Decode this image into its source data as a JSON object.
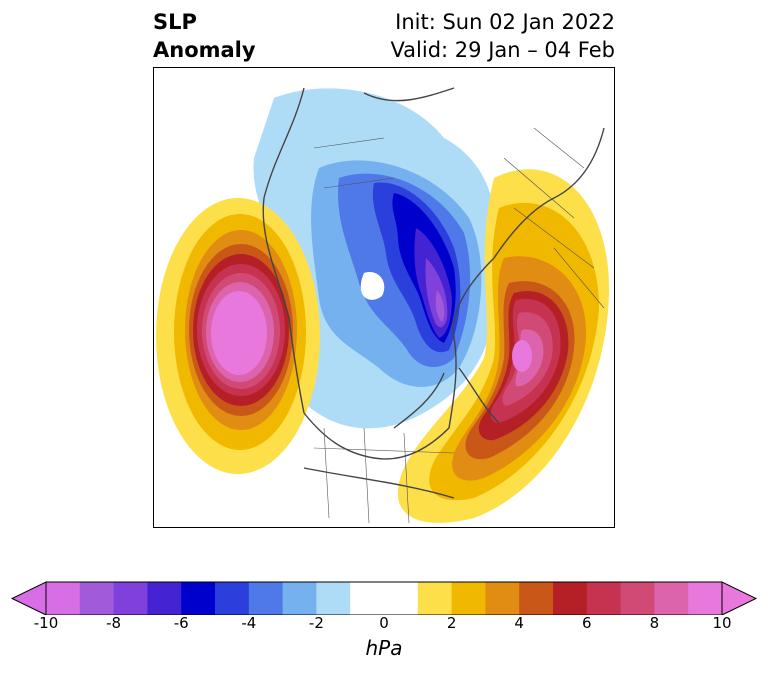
{
  "header": {
    "title_line1": "SLP",
    "title_line2": "Anomaly",
    "init": "Init: Sun 02 Jan 2022",
    "valid": "Valid: 29 Jan – 04 Feb"
  },
  "colorbar": {
    "unit": "hPa",
    "ticks": [
      "-10",
      "-8",
      "-6",
      "-4",
      "-2",
      "0",
      "2",
      "4",
      "6",
      "8",
      "10"
    ],
    "colors": [
      "#d86ee6",
      "#a15ad9",
      "#7f40db",
      "#4423d3",
      "#0000cd",
      "#2a3fdc",
      "#4f79e8",
      "#76b1ef",
      "#aedcf7",
      "#ffffff",
      "#ffffff",
      "#fddf4a",
      "#f1b800",
      "#e18c12",
      "#c95818",
      "#b52026",
      "#c53350",
      "#d14a76",
      "#dc64ac",
      "#e878dc"
    ]
  }
}
